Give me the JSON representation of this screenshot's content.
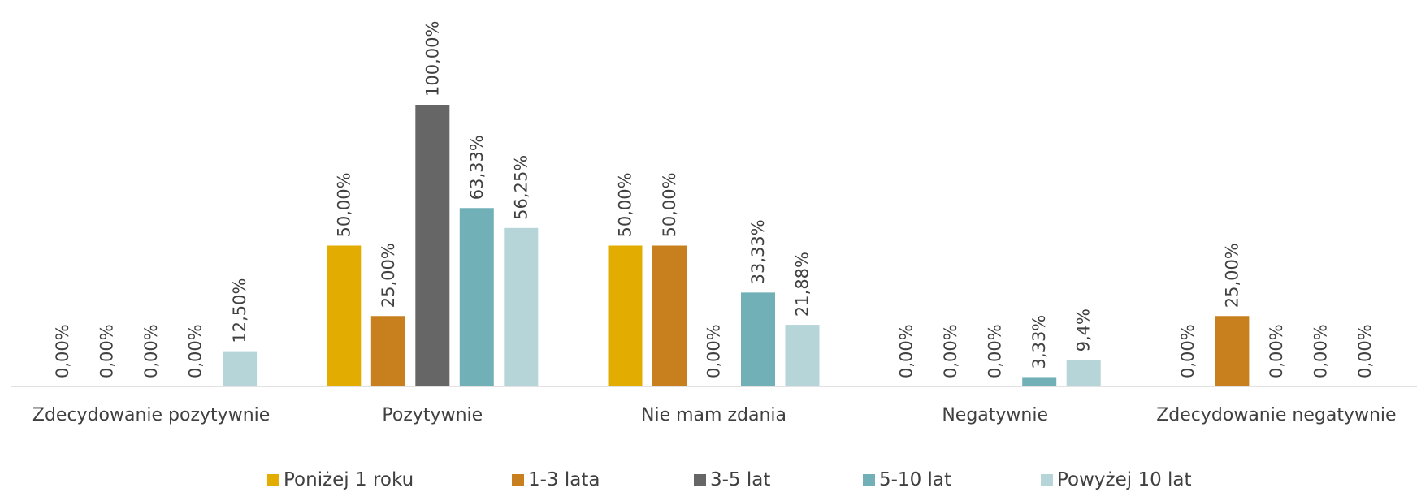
{
  "chart_data": {
    "type": "bar",
    "categories": [
      "Zdecydowanie pozytywnie",
      "Pozytywnie",
      "Nie mam zdania",
      "Negatywnie",
      "Zdecydowanie negatywnie"
    ],
    "series": [
      {
        "name": "Poniżej 1 roku",
        "color": "#e2ac00",
        "values": [
          0,
          50,
          50,
          0,
          0
        ],
        "value_labels": [
          "0,00%",
          "50,00%",
          "50,00%",
          "0,00%",
          "0,00%"
        ]
      },
      {
        "name": "1-3 lata",
        "color": "#c87f1e",
        "values": [
          0,
          25,
          50,
          0,
          25
        ],
        "value_labels": [
          "0,00%",
          "25,00%",
          "50,00%",
          "0,00%",
          "25,00%"
        ]
      },
      {
        "name": "3-5 lat",
        "color": "#666666",
        "values": [
          0,
          100,
          0,
          0,
          0
        ],
        "value_labels": [
          "0,00%",
          "100,00%",
          "0,00%",
          "0,00%",
          "0,00%"
        ]
      },
      {
        "name": "5-10 lat",
        "color": "#72b0b8",
        "values": [
          0,
          63.33,
          33.33,
          3.33,
          0
        ],
        "value_labels": [
          "0,00%",
          "63,33%",
          "33,33%",
          "3,33%",
          "0,00%"
        ]
      },
      {
        "name": "Powyżej 10 lat",
        "color": "#b5d5d9",
        "values": [
          12.5,
          56.25,
          21.88,
          9.4,
          0
        ],
        "value_labels": [
          "12,50%",
          "56,25%",
          "21,88%",
          "9,4%",
          "0,00%"
        ]
      }
    ],
    "legend": "bottom"
  }
}
